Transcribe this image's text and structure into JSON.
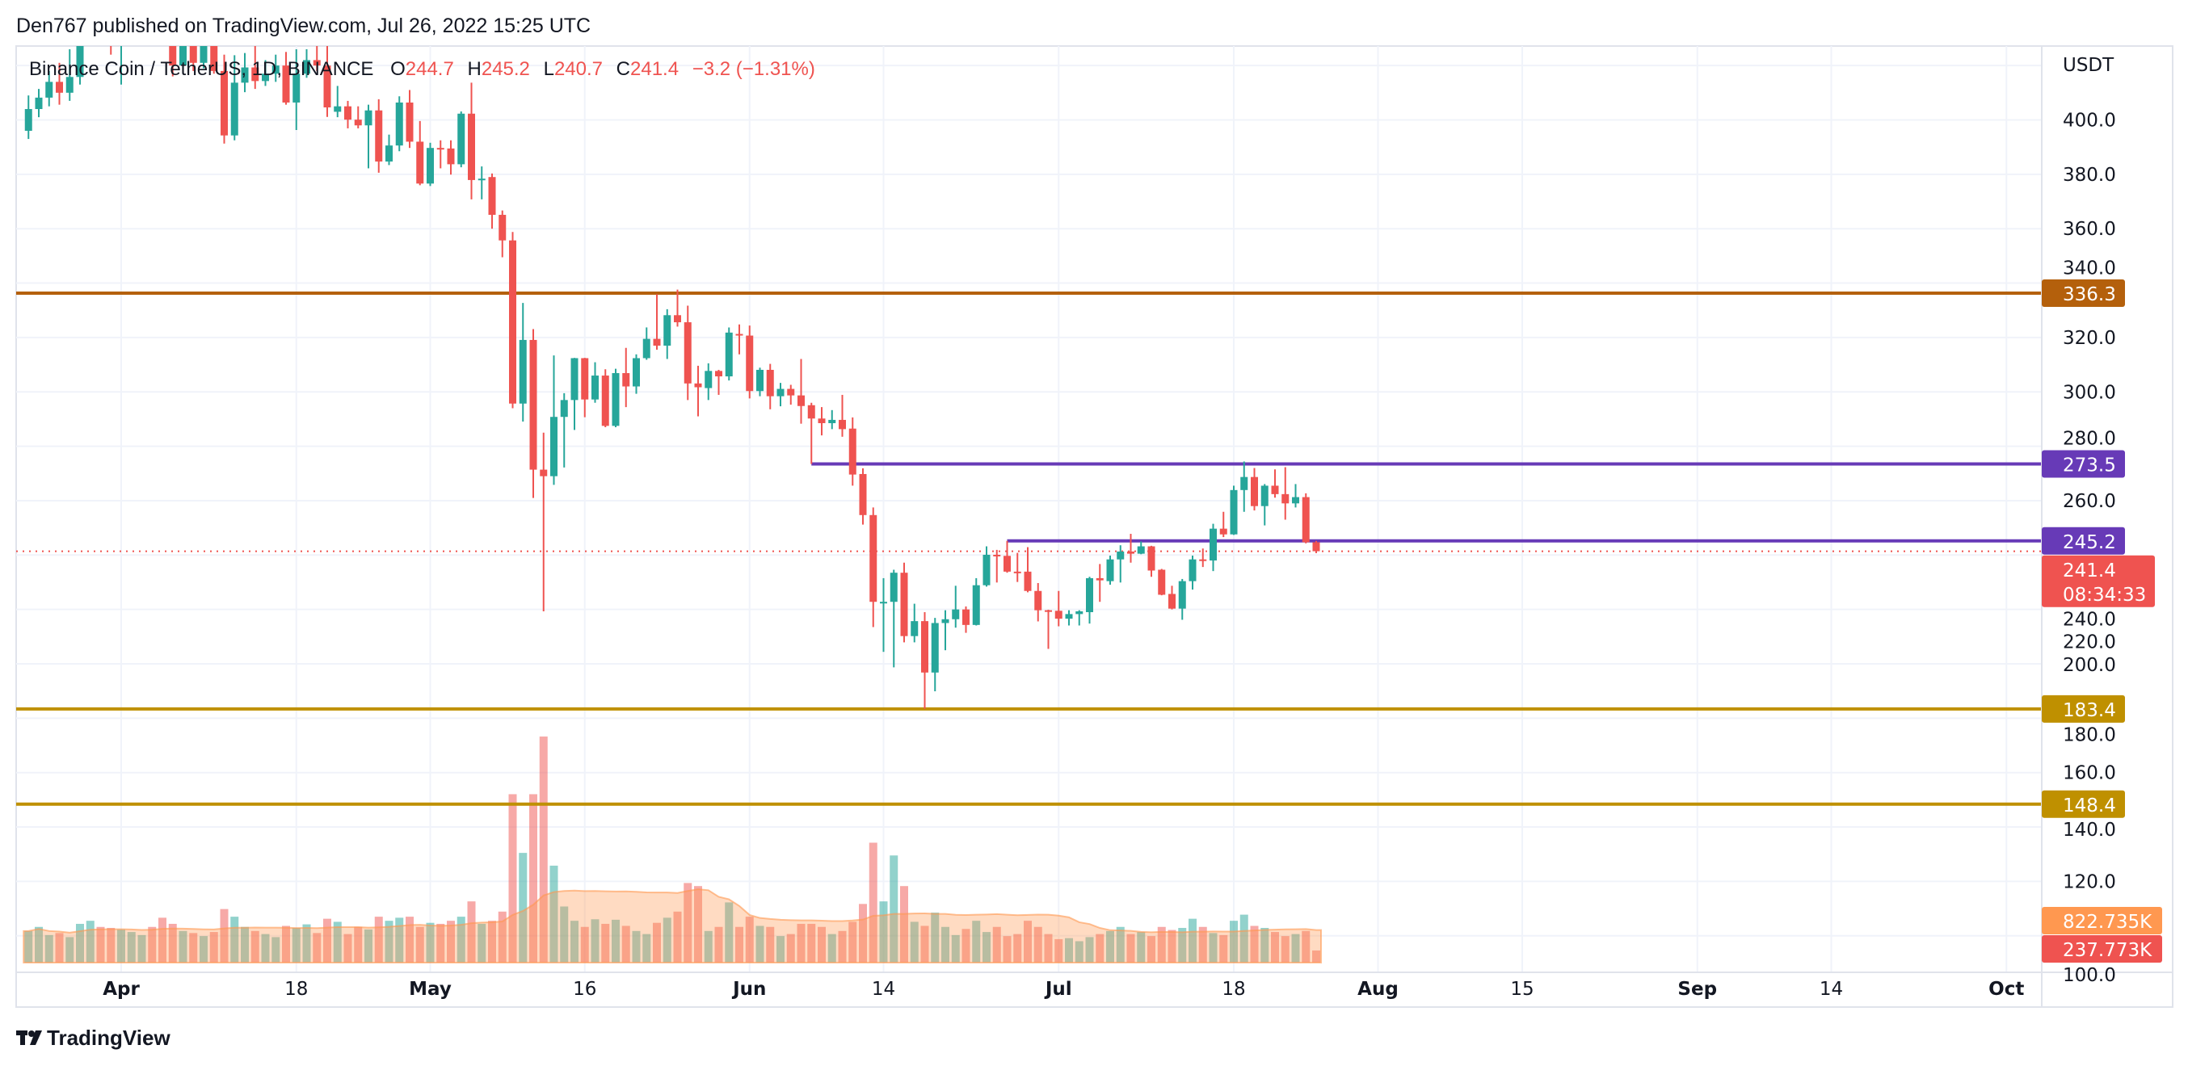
{
  "header": {
    "published_text": "Den767 published on TradingView.com, Jul 26, 2022 15:25 UTC"
  },
  "legend": {
    "symbol": "Binance Coin / TetherUS, 1D, BINANCE",
    "o_label": "O",
    "o_value": "244.7",
    "h_label": "H",
    "h_value": "245.2",
    "l_label": "L",
    "l_value": "240.7",
    "c_label": "C",
    "c_value": "241.4",
    "change": "−3.2 (−1.31%)"
  },
  "footer": {
    "brand": "TradingView",
    "logo_icon": "tradingview-logo-icon"
  },
  "colors": {
    "up": "#26a69a",
    "down": "#ef5350",
    "grid": "#f0f3fa",
    "border": "#e0e3eb",
    "volume_ma": "#ff9850"
  },
  "chart_data": {
    "type": "candlestick",
    "currency": "USDT",
    "price_ticks": [
      "400.0",
      "380.0",
      "360.0",
      "340.0",
      "320.0",
      "300.0",
      "280.0",
      "260.0",
      "240.0",
      "220.0",
      "200.0",
      "180.0",
      "160.0",
      "140.0",
      "120.0",
      "100.0"
    ],
    "date_ticks": [
      {
        "label": "Apr",
        "date": "2022-04-01"
      },
      {
        "label": "18",
        "date": "2022-04-18"
      },
      {
        "label": "May",
        "date": "2022-05-01"
      },
      {
        "label": "16",
        "date": "2022-05-16"
      },
      {
        "label": "Jun",
        "date": "2022-06-01"
      },
      {
        "label": "14",
        "date": "2022-06-14"
      },
      {
        "label": "Jul",
        "date": "2022-07-01"
      },
      {
        "label": "18",
        "date": "2022-07-18"
      },
      {
        "label": "Aug",
        "date": "2022-08-01"
      },
      {
        "label": "15",
        "date": "2022-08-15"
      },
      {
        "label": "Sep",
        "date": "2022-09-01"
      },
      {
        "label": "14",
        "date": "2022-09-14"
      },
      {
        "label": "Oct",
        "date": "2022-10-01"
      }
    ],
    "levels": [
      {
        "value": 336.3,
        "label": "336.3",
        "color": "#b4600c",
        "from": null
      },
      {
        "value": 273.5,
        "label": "273.5",
        "color": "#673ab7",
        "from": "2022-06-07"
      },
      {
        "value": 245.2,
        "label": "245.2",
        "color": "#673ab7",
        "from": "2022-06-26"
      },
      {
        "value": 183.4,
        "label": "183.4",
        "color": "#bf9000",
        "from": null
      },
      {
        "value": 148.4,
        "label": "148.4",
        "color": "#bf9000",
        "from": null
      }
    ],
    "last_price": {
      "value": 241.4,
      "label": "241.4",
      "countdown": "08:34:33",
      "color": "#ef5350"
    },
    "volume_tags": {
      "ma_label": "822.735K",
      "ma_value": 822.735,
      "last_label": "237.773K",
      "last_value": 237.773
    },
    "candles": [
      [
        "2022-03-23",
        396,
        409,
        393,
        404
      ],
      [
        "2022-03-24",
        404,
        411.4,
        401,
        408.2
      ],
      [
        "2022-03-25",
        408.2,
        418,
        405,
        414
      ],
      [
        "2022-03-26",
        414,
        421,
        405.6,
        410
      ],
      [
        "2022-03-27",
        410,
        426,
        407,
        415.8
      ],
      [
        "2022-03-28",
        415.8,
        438,
        413,
        432
      ],
      [
        "2022-03-29",
        432,
        440,
        428,
        436
      ],
      [
        "2022-03-30",
        436,
        445,
        430,
        434
      ],
      [
        "2022-03-31",
        434,
        438,
        424,
        428
      ],
      [
        "2022-04-01",
        428,
        440,
        413,
        438
      ],
      [
        "2022-04-02",
        438,
        450,
        435,
        446
      ],
      [
        "2022-04-03",
        446,
        455,
        442,
        450
      ],
      [
        "2022-04-04",
        450,
        452,
        440,
        445
      ],
      [
        "2022-04-05",
        445,
        448,
        430,
        432
      ],
      [
        "2022-04-06",
        432,
        434,
        416,
        420
      ],
      [
        "2022-04-07",
        420,
        432,
        418,
        428
      ],
      [
        "2022-04-08",
        428,
        433,
        418,
        421
      ],
      [
        "2022-04-09",
        421,
        431,
        419,
        429
      ],
      [
        "2022-04-10",
        429,
        435,
        417,
        418
      ],
      [
        "2022-04-11",
        418,
        424,
        391.3,
        394.3
      ],
      [
        "2022-04-12",
        394.3,
        423.8,
        392.5,
        413.7
      ],
      [
        "2022-04-13",
        413.7,
        424.6,
        410.2,
        419.3
      ],
      [
        "2022-04-14",
        419.3,
        428,
        411.4,
        414.3
      ],
      [
        "2022-04-15",
        414.3,
        422,
        412.5,
        417
      ],
      [
        "2022-04-16",
        417,
        424,
        414,
        420
      ],
      [
        "2022-04-17",
        420,
        425,
        405.6,
        406.4
      ],
      [
        "2022-04-18",
        406.4,
        426,
        396.3,
        417
      ],
      [
        "2022-04-19",
        417,
        426,
        415.5,
        422
      ],
      [
        "2022-04-20",
        422,
        428,
        418,
        420
      ],
      [
        "2022-04-21",
        420,
        430,
        401.1,
        404.6
      ],
      [
        "2022-04-22",
        403,
        412.5,
        401,
        405
      ],
      [
        "2022-04-23",
        405,
        407,
        396.9,
        400.1
      ],
      [
        "2022-04-24",
        400.1,
        405,
        396.9,
        398
      ],
      [
        "2022-04-25",
        398,
        405.6,
        382.2,
        403.5
      ],
      [
        "2022-04-26",
        403.5,
        407.6,
        380.6,
        384.7
      ],
      [
        "2022-04-27",
        384.7,
        394.6,
        383.4,
        390.6
      ],
      [
        "2022-04-28",
        390.6,
        408.7,
        388.5,
        406.4
      ],
      [
        "2022-04-29",
        406.4,
        411,
        389.7,
        392
      ],
      [
        "2022-04-30",
        392,
        399.6,
        376,
        376.6
      ],
      [
        "2022-05-01",
        376.6,
        391.6,
        375.7,
        389.7
      ],
      [
        "2022-05-02",
        389.7,
        392.5,
        382.2,
        389.5
      ],
      [
        "2022-05-03",
        389.5,
        392.5,
        379.9,
        383.7
      ],
      [
        "2022-05-04",
        383.7,
        403.1,
        382.6,
        402.3
      ],
      [
        "2022-05-05",
        402.3,
        413.7,
        370.8,
        377.9
      ],
      [
        "2022-05-06",
        377.9,
        382.9,
        370.8,
        378.4
      ],
      [
        "2022-05-07",
        379,
        380.3,
        360,
        365.1
      ],
      [
        "2022-05-08",
        365.1,
        366.7,
        349.5,
        355.7
      ],
      [
        "2022-05-09",
        355.7,
        358.8,
        294,
        295.7
      ],
      [
        "2022-05-10",
        295.7,
        332.7,
        289.1,
        319.1
      ],
      [
        "2022-05-11",
        319.1,
        323.1,
        261,
        271.4
      ],
      [
        "2022-05-12",
        271.4,
        285,
        219.3,
        269
      ],
      [
        "2022-05-13",
        269,
        313.4,
        265.8,
        290.8
      ],
      [
        "2022-05-14",
        290.8,
        299.5,
        272.2,
        297
      ],
      [
        "2022-05-15",
        297,
        312.5,
        286,
        312.4
      ],
      [
        "2022-05-16",
        312.4,
        312.5,
        290.7,
        297.2
      ],
      [
        "2022-05-17",
        297.2,
        310.9,
        296,
        306
      ],
      [
        "2022-05-18",
        306,
        308.3,
        287,
        287.5
      ],
      [
        "2022-05-19",
        287.5,
        308.5,
        287,
        306.9
      ],
      [
        "2022-05-20",
        306.9,
        316.2,
        294.4,
        302
      ],
      [
        "2022-05-21",
        302,
        313.8,
        299.3,
        312.4
      ],
      [
        "2022-05-22",
        312.4,
        323.7,
        311.8,
        319.5
      ],
      [
        "2022-05-23",
        319.5,
        335.9,
        315.5,
        317
      ],
      [
        "2022-05-24",
        317,
        330.4,
        312.1,
        328.2
      ],
      [
        "2022-05-25",
        328.2,
        337.6,
        324,
        325.6
      ],
      [
        "2022-05-26",
        325.6,
        331.7,
        297,
        303.1
      ],
      [
        "2022-05-27",
        303.1,
        309.6,
        291,
        301.7
      ],
      [
        "2022-05-28",
        301.4,
        310.5,
        297,
        307.7
      ],
      [
        "2022-05-29",
        307.7,
        308.1,
        298.9,
        305.7
      ],
      [
        "2022-05-30",
        305.7,
        323.7,
        304.2,
        321.8
      ],
      [
        "2022-05-31",
        321.3,
        324.8,
        313.8,
        320.8
      ],
      [
        "2022-06-01",
        320.7,
        324.4,
        297.6,
        300.3
      ],
      [
        "2022-06-02",
        300.3,
        308.9,
        298.4,
        308.1
      ],
      [
        "2022-06-03",
        308.1,
        310.3,
        293.6,
        298.4
      ],
      [
        "2022-06-04",
        298.4,
        303.3,
        294.7,
        301.1
      ],
      [
        "2022-06-05",
        301.1,
        302.6,
        295.3,
        298.7
      ],
      [
        "2022-06-06",
        298.7,
        312.1,
        288.3,
        294.8
      ],
      [
        "2022-06-07",
        295.1,
        296,
        273.5,
        290.2
      ],
      [
        "2022-06-08",
        290.2,
        294.4,
        284,
        288.5
      ],
      [
        "2022-06-09",
        288.5,
        293.3,
        286.3,
        289.7
      ],
      [
        "2022-06-10",
        289.7,
        298.9,
        283.5,
        286.3
      ],
      [
        "2022-06-11",
        286.5,
        290.6,
        265.5,
        269.6
      ],
      [
        "2022-06-12",
        269.8,
        271.9,
        251.2,
        254.7
      ],
      [
        "2022-06-13",
        254.7,
        257.5,
        213.5,
        222.8
      ],
      [
        "2022-06-14",
        222.6,
        231.5,
        204.4,
        222.8
      ],
      [
        "2022-06-15",
        222.8,
        234.6,
        198.7,
        233.5
      ],
      [
        "2022-06-16",
        233.5,
        237.2,
        207.9,
        210.2
      ],
      [
        "2022-06-17",
        210.2,
        222.1,
        207.9,
        215.7
      ],
      [
        "2022-06-18",
        215.7,
        219,
        183.4,
        196.8
      ],
      [
        "2022-06-19",
        196.8,
        216.9,
        189.9,
        215
      ],
      [
        "2022-06-20",
        215,
        219.7,
        205,
        216.4
      ],
      [
        "2022-06-21",
        216.4,
        228.7,
        213.3,
        220
      ],
      [
        "2022-06-22",
        220,
        221.1,
        211.4,
        214.3
      ],
      [
        "2022-06-23",
        214.3,
        231.5,
        214.1,
        228.9
      ],
      [
        "2022-06-24",
        228.9,
        243.2,
        228.4,
        240.1
      ],
      [
        "2022-06-25",
        240.1,
        241.9,
        229.9,
        239.5
      ],
      [
        "2022-06-26",
        239.7,
        245.2,
        233.5,
        233.9
      ],
      [
        "2022-06-27",
        233.9,
        240.8,
        230.1,
        233.5
      ],
      [
        "2022-06-28",
        233.9,
        242.9,
        226.3,
        226.8
      ],
      [
        "2022-06-29",
        226.8,
        229.7,
        215.6,
        219.7
      ],
      [
        "2022-06-30",
        219.7,
        219.9,
        205.5,
        219.5
      ],
      [
        "2022-07-01",
        219.5,
        226.8,
        213.8,
        216.6
      ],
      [
        "2022-07-02",
        216.6,
        219.7,
        214.1,
        218.3
      ],
      [
        "2022-07-03",
        218.3,
        219.7,
        214.1,
        219.3
      ],
      [
        "2022-07-04",
        219,
        232,
        214.8,
        231.5
      ],
      [
        "2022-07-05",
        231.5,
        236.7,
        222.8,
        230.7
      ],
      [
        "2022-07-06",
        230.4,
        239.8,
        229.1,
        238.4
      ],
      [
        "2022-07-07",
        238.4,
        243.6,
        229.9,
        241.3
      ],
      [
        "2022-07-08",
        241.3,
        247.8,
        237.2,
        240.5
      ],
      [
        "2022-07-09",
        240.5,
        245,
        240.3,
        243.2
      ],
      [
        "2022-07-10",
        243.2,
        243.4,
        232,
        234.3
      ],
      [
        "2022-07-11",
        234.6,
        234.9,
        225.2,
        225.4
      ],
      [
        "2022-07-12",
        225.7,
        228.7,
        220,
        220.3
      ],
      [
        "2022-07-13",
        220.3,
        231.2,
        216.2,
        230.4
      ],
      [
        "2022-07-14",
        230.4,
        239.8,
        227.3,
        238.4
      ],
      [
        "2022-07-15",
        238.4,
        242.4,
        235.6,
        238
      ],
      [
        "2022-07-16",
        238,
        251.5,
        234.1,
        249.7
      ],
      [
        "2022-07-17",
        249.7,
        255.9,
        246.6,
        247.6
      ],
      [
        "2022-07-18",
        247.6,
        265.5,
        247.4,
        263.9
      ],
      [
        "2022-07-19",
        263.9,
        274.4,
        255.9,
        268.7
      ],
      [
        "2022-07-20",
        268.7,
        272,
        256.4,
        258
      ],
      [
        "2022-07-21",
        258,
        266.1,
        250.9,
        265.5
      ],
      [
        "2022-07-22",
        265.5,
        271.5,
        261.1,
        262.4
      ],
      [
        "2022-07-23",
        262.4,
        272.3,
        253,
        259
      ],
      [
        "2022-07-24",
        259,
        266.1,
        257.5,
        261.3
      ],
      [
        "2022-07-25",
        261.3,
        262.7,
        244.3,
        244.7
      ],
      [
        "2022-07-26",
        244.7,
        245.2,
        240.7,
        241.4
      ]
    ],
    "volumes_k": [
      620,
      700,
      540,
      580,
      500,
      760,
      820,
      700,
      680,
      650,
      600,
      540,
      700,
      880,
      760,
      620,
      580,
      520,
      600,
      1050,
      900,
      700,
      620,
      560,
      500,
      720,
      680,
      750,
      580,
      860,
      800,
      560,
      700,
      650,
      900,
      820,
      880,
      900,
      700,
      780,
      760,
      820,
      900,
      1200,
      760,
      820,
      1000,
      3300,
      2150,
      3300,
      4430,
      1900,
      1100,
      820,
      700,
      850,
      760,
      840,
      720,
      620,
      560,
      780,
      880,
      1000,
      1560,
      1500,
      620,
      700,
      1180,
      700,
      900,
      720,
      700,
      520,
      560,
      760,
      760,
      700,
      560,
      620,
      800,
      1150,
      2350,
      1200,
      2100,
      1500,
      800,
      720,
      980,
      700,
      540,
      660,
      820,
      600,
      700,
      520,
      560,
      820,
      700,
      560,
      460,
      480,
      420,
      500,
      560,
      620,
      700,
      560,
      600,
      520,
      700,
      640,
      680,
      860,
      700,
      580,
      540,
      820,
      940,
      720,
      680,
      600,
      520,
      560,
      620,
      238
    ]
  }
}
